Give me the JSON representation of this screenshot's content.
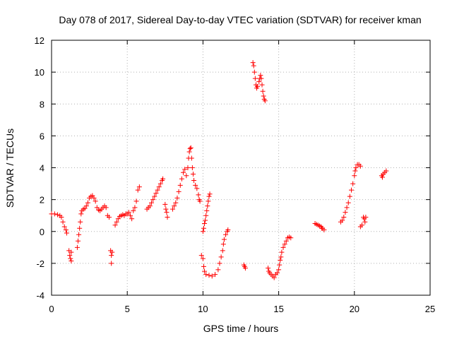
{
  "chart_data": {
    "type": "scatter",
    "title": "Day 078 of 2017, Sidereal Day-to-day VTEC variation (SDTVAR) for receiver kman",
    "xlabel": "GPS time / hours",
    "ylabel": "SDTVAR / TECUs",
    "xlim": [
      0,
      25
    ],
    "ylim": [
      -4,
      12
    ],
    "xticks": [
      0,
      5,
      10,
      15,
      20,
      25
    ],
    "yticks": [
      -4,
      -2,
      0,
      2,
      4,
      6,
      8,
      10,
      12
    ],
    "grid": true,
    "marker": "plus",
    "color": "#ff0000",
    "series": [
      {
        "name": "SDTVAR",
        "points": [
          [
            0.0,
            1.1
          ],
          [
            0.2,
            1.1
          ],
          [
            0.4,
            1.05
          ],
          [
            0.55,
            1.0
          ],
          [
            0.65,
            0.9
          ],
          [
            0.75,
            0.6
          ],
          [
            0.85,
            0.3
          ],
          [
            0.95,
            0.1
          ],
          [
            1.0,
            -0.1
          ],
          [
            1.15,
            -1.2
          ],
          [
            1.2,
            -1.5
          ],
          [
            1.25,
            -1.7
          ],
          [
            1.3,
            -1.85
          ],
          [
            1.3,
            -1.3
          ],
          [
            1.7,
            -1.0
          ],
          [
            1.75,
            -0.6
          ],
          [
            1.8,
            -0.2
          ],
          [
            1.85,
            0.2
          ],
          [
            1.9,
            0.6
          ],
          [
            1.95,
            1.1
          ],
          [
            2.0,
            1.3
          ],
          [
            2.1,
            1.4
          ],
          [
            2.2,
            1.45
          ],
          [
            2.3,
            1.6
          ],
          [
            2.4,
            1.8
          ],
          [
            2.5,
            2.1
          ],
          [
            2.6,
            2.2
          ],
          [
            2.7,
            2.25
          ],
          [
            2.8,
            2.1
          ],
          [
            2.9,
            1.9
          ],
          [
            3.0,
            1.5
          ],
          [
            3.1,
            1.35
          ],
          [
            3.2,
            1.3
          ],
          [
            3.3,
            1.4
          ],
          [
            3.4,
            1.5
          ],
          [
            3.5,
            1.6
          ],
          [
            3.6,
            1.5
          ],
          [
            3.7,
            1.0
          ],
          [
            3.8,
            0.9
          ],
          [
            3.9,
            -1.2
          ],
          [
            3.95,
            -1.5
          ],
          [
            3.95,
            -2.0
          ],
          [
            4.0,
            -1.3
          ],
          [
            4.2,
            0.4
          ],
          [
            4.3,
            0.6
          ],
          [
            4.4,
            0.8
          ],
          [
            4.5,
            0.95
          ],
          [
            4.6,
            1.0
          ],
          [
            4.7,
            1.05
          ],
          [
            4.8,
            1.0
          ],
          [
            4.9,
            1.1
          ],
          [
            5.0,
            1.1
          ],
          [
            5.1,
            1.2
          ],
          [
            5.2,
            1.0
          ],
          [
            5.3,
            0.8
          ],
          [
            5.4,
            1.3
          ],
          [
            5.5,
            1.5
          ],
          [
            5.6,
            1.9
          ],
          [
            5.7,
            2.6
          ],
          [
            5.8,
            2.8
          ],
          [
            6.3,
            1.4
          ],
          [
            6.4,
            1.5
          ],
          [
            6.5,
            1.6
          ],
          [
            6.6,
            1.8
          ],
          [
            6.7,
            2.0
          ],
          [
            6.8,
            2.2
          ],
          [
            6.9,
            2.4
          ],
          [
            7.0,
            2.6
          ],
          [
            7.1,
            2.8
          ],
          [
            7.2,
            3.0
          ],
          [
            7.3,
            3.2
          ],
          [
            7.35,
            3.3
          ],
          [
            7.5,
            1.7
          ],
          [
            7.55,
            1.4
          ],
          [
            7.6,
            1.2
          ],
          [
            7.65,
            0.9
          ],
          [
            8.0,
            1.4
          ],
          [
            8.1,
            1.6
          ],
          [
            8.2,
            1.8
          ],
          [
            8.3,
            2.1
          ],
          [
            8.4,
            2.5
          ],
          [
            8.5,
            2.9
          ],
          [
            8.6,
            3.3
          ],
          [
            8.7,
            3.7
          ],
          [
            8.8,
            3.9
          ],
          [
            8.9,
            3.5
          ],
          [
            9.0,
            4.0
          ],
          [
            9.05,
            4.6
          ],
          [
            9.1,
            5.0
          ],
          [
            9.15,
            5.2
          ],
          [
            9.2,
            5.25
          ],
          [
            9.25,
            4.6
          ],
          [
            9.3,
            4.0
          ],
          [
            9.35,
            3.6
          ],
          [
            9.4,
            3.2
          ],
          [
            9.5,
            2.9
          ],
          [
            9.6,
            2.7
          ],
          [
            9.7,
            2.3
          ],
          [
            9.75,
            2.0
          ],
          [
            9.8,
            1.9
          ],
          [
            10.0,
            0.0
          ],
          [
            10.05,
            0.2
          ],
          [
            10.1,
            0.5
          ],
          [
            10.15,
            0.7
          ],
          [
            10.2,
            1.0
          ],
          [
            10.25,
            1.3
          ],
          [
            10.3,
            1.6
          ],
          [
            10.35,
            1.9
          ],
          [
            10.4,
            2.2
          ],
          [
            10.45,
            2.35
          ],
          [
            9.9,
            -1.5
          ],
          [
            10.0,
            -1.7
          ],
          [
            10.05,
            -2.2
          ],
          [
            10.1,
            -2.5
          ],
          [
            10.2,
            -2.7
          ],
          [
            10.4,
            -2.75
          ],
          [
            10.6,
            -2.8
          ],
          [
            10.8,
            -2.7
          ],
          [
            11.0,
            -2.4
          ],
          [
            11.1,
            -2.0
          ],
          [
            11.2,
            -1.6
          ],
          [
            11.3,
            -1.2
          ],
          [
            11.35,
            -0.8
          ],
          [
            11.4,
            -0.5
          ],
          [
            11.5,
            -0.2
          ],
          [
            11.6,
            0.0
          ],
          [
            11.65,
            0.1
          ],
          [
            12.7,
            -2.1
          ],
          [
            12.75,
            -2.2
          ],
          [
            12.8,
            -2.3
          ],
          [
            13.3,
            10.6
          ],
          [
            13.35,
            10.4
          ],
          [
            13.4,
            10.0
          ],
          [
            13.45,
            9.6
          ],
          [
            13.5,
            9.2
          ],
          [
            13.55,
            9.0
          ],
          [
            13.6,
            9.1
          ],
          [
            13.7,
            9.4
          ],
          [
            13.75,
            9.6
          ],
          [
            13.8,
            9.8
          ],
          [
            13.85,
            9.6
          ],
          [
            13.9,
            9.2
          ],
          [
            13.95,
            8.8
          ],
          [
            14.0,
            8.5
          ],
          [
            14.05,
            8.3
          ],
          [
            14.1,
            8.2
          ],
          [
            14.3,
            -2.3
          ],
          [
            14.35,
            -2.5
          ],
          [
            14.4,
            -2.6
          ],
          [
            14.5,
            -2.7
          ],
          [
            14.6,
            -2.8
          ],
          [
            14.7,
            -2.9
          ],
          [
            14.8,
            -2.7
          ],
          [
            14.9,
            -2.6
          ],
          [
            15.0,
            -2.4
          ],
          [
            15.05,
            -2.1
          ],
          [
            15.1,
            -1.8
          ],
          [
            15.15,
            -1.6
          ],
          [
            15.2,
            -1.3
          ],
          [
            15.3,
            -1.0
          ],
          [
            15.4,
            -0.8
          ],
          [
            15.5,
            -0.6
          ],
          [
            15.6,
            -0.4
          ],
          [
            15.7,
            -0.35
          ],
          [
            15.8,
            -0.4
          ],
          [
            17.4,
            0.5
          ],
          [
            17.5,
            0.45
          ],
          [
            17.6,
            0.4
          ],
          [
            17.7,
            0.35
          ],
          [
            17.8,
            0.3
          ],
          [
            17.85,
            0.2
          ],
          [
            17.9,
            0.2
          ],
          [
            18.0,
            0.1
          ],
          [
            19.1,
            0.6
          ],
          [
            19.2,
            0.7
          ],
          [
            19.3,
            0.9
          ],
          [
            19.4,
            1.2
          ],
          [
            19.5,
            1.5
          ],
          [
            19.6,
            1.8
          ],
          [
            19.7,
            2.2
          ],
          [
            19.8,
            2.6
          ],
          [
            19.9,
            3.0
          ],
          [
            20.0,
            3.5
          ],
          [
            20.05,
            3.8
          ],
          [
            20.1,
            4.0
          ],
          [
            20.2,
            4.2
          ],
          [
            20.3,
            4.2
          ],
          [
            20.4,
            4.1
          ],
          [
            20.4,
            0.3
          ],
          [
            20.5,
            0.4
          ],
          [
            20.6,
            0.9
          ],
          [
            20.65,
            0.8
          ],
          [
            20.7,
            0.6
          ],
          [
            20.75,
            0.9
          ],
          [
            21.8,
            3.5
          ],
          [
            21.85,
            3.4
          ],
          [
            21.9,
            3.6
          ],
          [
            22.0,
            3.7
          ],
          [
            22.1,
            3.8
          ]
        ]
      }
    ]
  }
}
